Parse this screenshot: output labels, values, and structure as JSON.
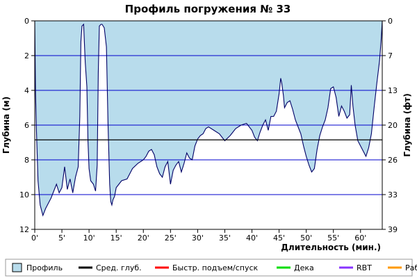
{
  "chart_data": {
    "type": "area",
    "title": "Профиль погружения № 33",
    "xlabel": "Длительность (мин.)",
    "ylabel_left": "Глубина (м)",
    "ylabel_right": "Глубина (фт)",
    "xlim": [
      0,
      64
    ],
    "ylim": [
      0,
      12
    ],
    "y_inverted": true,
    "grid": true,
    "x_ticks": [
      "0'",
      "5'",
      "10'",
      "15'",
      "20'",
      "25'",
      "30'",
      "35'",
      "40'",
      "45'",
      "50'",
      "55'",
      "60'"
    ],
    "y_ticks_m": [
      "0",
      "2",
      "4",
      "6",
      "8",
      "10",
      "12"
    ],
    "y_ticks_ft": [
      "0",
      "7",
      "13",
      "20",
      "26",
      "33",
      "39"
    ],
    "avg_depth_m": 6.85,
    "colors": {
      "profile_fill": "#b8dcec",
      "grid": "#0000cc",
      "profile_line": "#000066",
      "avg_line": "#000000"
    },
    "series": [
      {
        "name": "Профиль",
        "x": [
          0,
          0.15,
          0.3,
          0.6,
          1.0,
          1.5,
          2.0,
          2.5,
          3.0,
          3.5,
          4.0,
          4.5,
          5.0,
          5.5,
          6.0,
          6.5,
          7.0,
          7.5,
          8.0,
          8.3,
          8.5,
          8.7,
          9.0,
          9.3,
          9.6,
          9.8,
          10.0,
          10.3,
          10.8,
          11.2,
          11.5,
          11.7,
          11.9,
          12.2,
          12.4,
          12.6,
          12.8,
          13.2,
          13.5,
          13.8,
          14.0,
          14.2,
          14.4,
          14.7,
          15.0,
          15.5,
          16.0,
          17.0,
          18.0,
          19.0,
          20.0,
          20.5,
          21.0,
          21.5,
          22.0,
          22.5,
          23.0,
          23.5,
          24.0,
          24.5,
          25.0,
          25.5,
          26.0,
          26.5,
          27.0,
          27.5,
          28.0,
          28.5,
          29.0,
          29.5,
          30.0,
          30.5,
          31.0,
          31.5,
          32.0,
          33.0,
          34.0,
          35.0,
          36.0,
          37.0,
          38.0,
          39.0,
          40.0,
          40.5,
          41.0,
          41.5,
          42.0,
          42.5,
          43.0,
          43.5,
          44.0,
          44.5,
          45.0,
          45.3,
          45.5,
          45.8,
          46.0,
          46.5,
          47.0,
          47.5,
          48.0,
          48.5,
          49.0,
          49.5,
          50.0,
          50.5,
          51.0,
          51.5,
          52.0,
          52.5,
          53.0,
          53.5,
          54.0,
          54.5,
          55.0,
          55.5,
          56.0,
          56.5,
          57.0,
          57.5,
          58.0,
          58.3,
          58.6,
          59.0,
          59.5,
          60.0,
          60.5,
          61.0,
          61.5,
          62.0,
          62.5,
          63.0,
          63.5,
          63.8,
          64.0
        ],
        "y": [
          0,
          4.2,
          6.2,
          9.2,
          10.6,
          11.2,
          10.8,
          10.5,
          10.2,
          9.8,
          9.4,
          9.9,
          9.6,
          8.4,
          9.7,
          9.1,
          9.9,
          9.0,
          8.4,
          5.5,
          1.2,
          0.3,
          0.2,
          2.4,
          3.8,
          6.9,
          8.5,
          9.2,
          9.4,
          9.8,
          8.3,
          3.0,
          0.3,
          0.2,
          0.2,
          0.3,
          0.4,
          1.5,
          6.0,
          9.4,
          10.4,
          10.6,
          10.3,
          10.1,
          9.6,
          9.4,
          9.2,
          9.1,
          8.5,
          8.2,
          8.0,
          7.8,
          7.5,
          7.4,
          7.7,
          8.4,
          8.8,
          9.0,
          8.4,
          8.1,
          9.4,
          8.6,
          8.3,
          8.1,
          8.7,
          8.2,
          7.6,
          7.9,
          8.0,
          7.2,
          6.8,
          6.6,
          6.5,
          6.2,
          6.1,
          6.3,
          6.5,
          6.9,
          6.6,
          6.2,
          6.0,
          5.9,
          6.3,
          6.7,
          6.9,
          6.4,
          6.0,
          5.7,
          6.3,
          5.5,
          5.5,
          5.2,
          4.2,
          3.3,
          3.6,
          4.3,
          5.0,
          4.7,
          4.6,
          5.1,
          5.7,
          6.1,
          6.5,
          7.2,
          7.8,
          8.3,
          8.7,
          8.5,
          7.4,
          6.6,
          6.1,
          5.7,
          5.0,
          3.9,
          3.8,
          4.4,
          5.5,
          4.9,
          5.2,
          5.6,
          5.4,
          3.7,
          4.9,
          6.0,
          6.9,
          7.2,
          7.5,
          7.8,
          7.3,
          6.5,
          5.0,
          3.6,
          2.3,
          1.1,
          0
        ]
      }
    ]
  },
  "legend": {
    "items": [
      {
        "label": "Профиль",
        "color": "#b8dcec",
        "kind": "box"
      },
      {
        "label": "Сред. глуб.",
        "color": "#000000",
        "kind": "line"
      },
      {
        "label": "Быстр. подъем/спуск",
        "color": "#ff0000",
        "kind": "line"
      },
      {
        "label": "Дека",
        "color": "#00dd00",
        "kind": "line"
      },
      {
        "label": "RBT",
        "color": "#8833ff",
        "kind": "line"
      },
      {
        "label": "Раб.",
        "color": "#ff9900",
        "kind": "line"
      }
    ]
  }
}
